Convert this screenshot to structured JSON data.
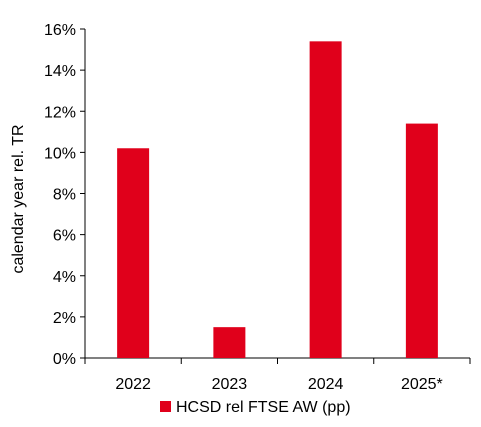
{
  "chart_data": {
    "type": "bar",
    "title": "",
    "xlabel": "",
    "ylabel": "calendar year rel. TR",
    "categories": [
      "2022",
      "2023",
      "2024",
      "2025*"
    ],
    "series": [
      {
        "name": "HCSD rel FTSE AW (pp)",
        "values": [
          10.2,
          1.5,
          15.4,
          11.4
        ],
        "color": "#e0001b"
      }
    ],
    "ylim": [
      0,
      16
    ],
    "yticks": [
      0,
      2,
      4,
      6,
      8,
      10,
      12,
      14,
      16
    ],
    "ytick_labels": [
      "0%",
      "2%",
      "4%",
      "6%",
      "8%",
      "10%",
      "12%",
      "14%",
      "16%"
    ],
    "grid": false,
    "legend_position": "bottom"
  }
}
